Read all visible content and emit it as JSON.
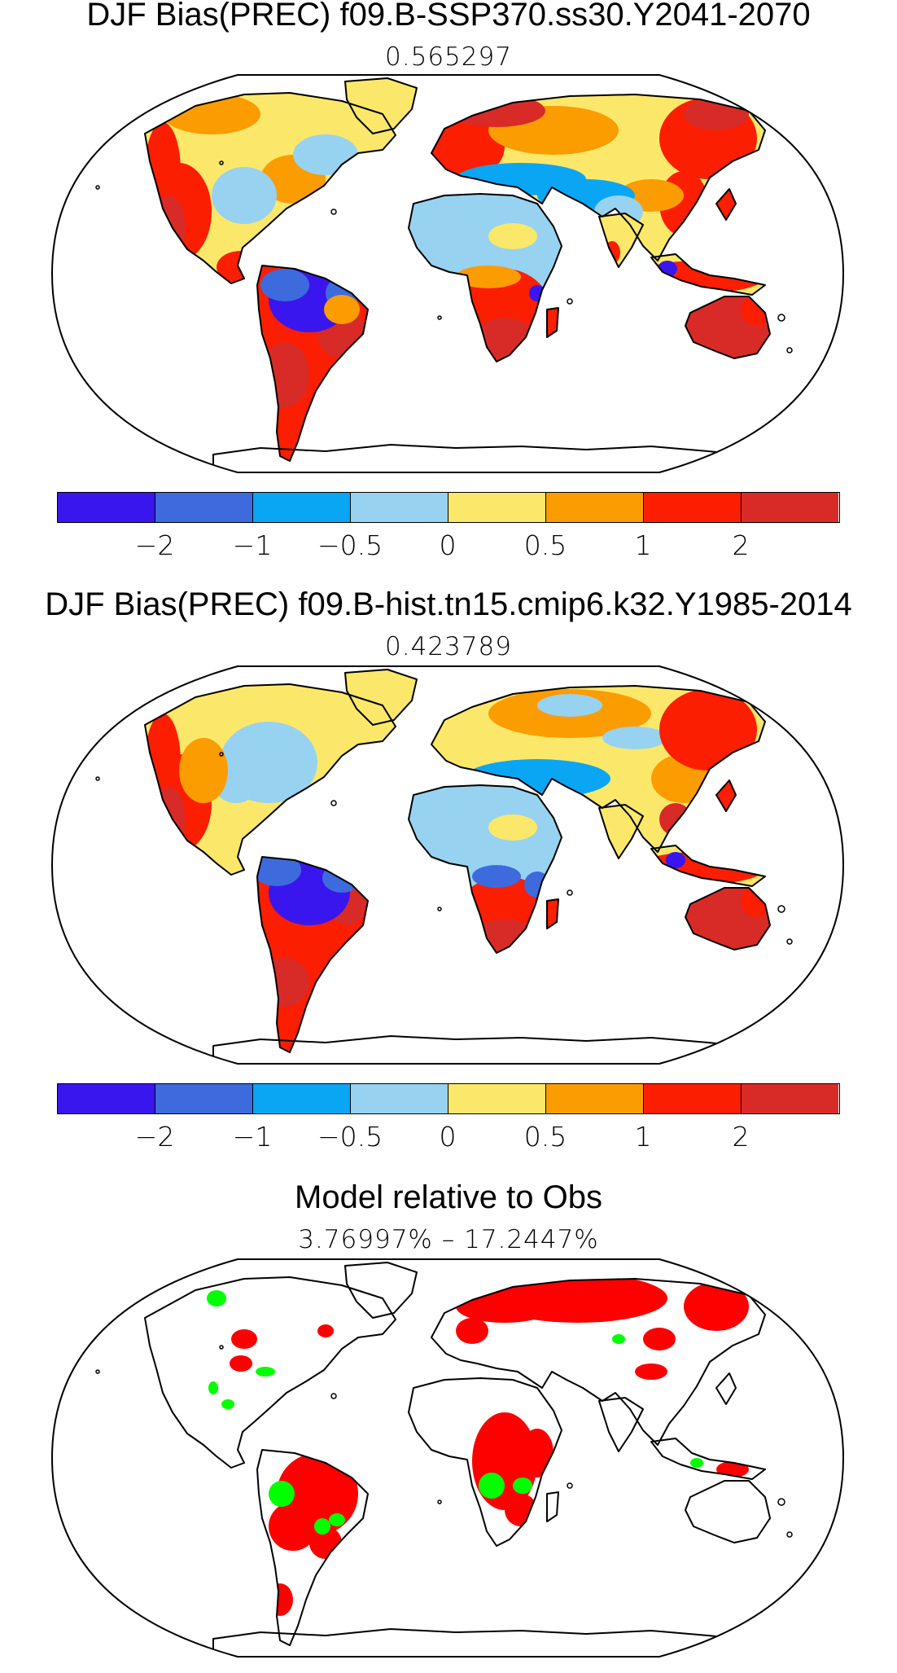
{
  "panels": [
    {
      "title": "DJF Bias(PREC) f09.B-SSP370.ss30.Y2041-2070",
      "subtitle": "0.565297",
      "variant": "future"
    },
    {
      "title": "DJF Bias(PREC) f09.B-hist.tn15.cmip6.k32.Y1985-2014",
      "subtitle": "0.423789",
      "variant": "hist"
    },
    {
      "title": "Model relative to Obs",
      "subtitle": "3.76997% – 17.2447%",
      "variant": "relative"
    }
  ],
  "colorbar": {
    "colors": [
      "#3a16ee",
      "#3d6bde",
      "#0aa6f4",
      "#97d2f0",
      "#fbe86a",
      "#fb9c00",
      "#fc1e00",
      "#d82b28"
    ],
    "labels": [
      "−2",
      "−1",
      "−0.5",
      "0",
      "0.5",
      "1",
      "2"
    ]
  },
  "map_legend_colors": {
    "red": "#fd0000",
    "green": "#00ff00"
  }
}
